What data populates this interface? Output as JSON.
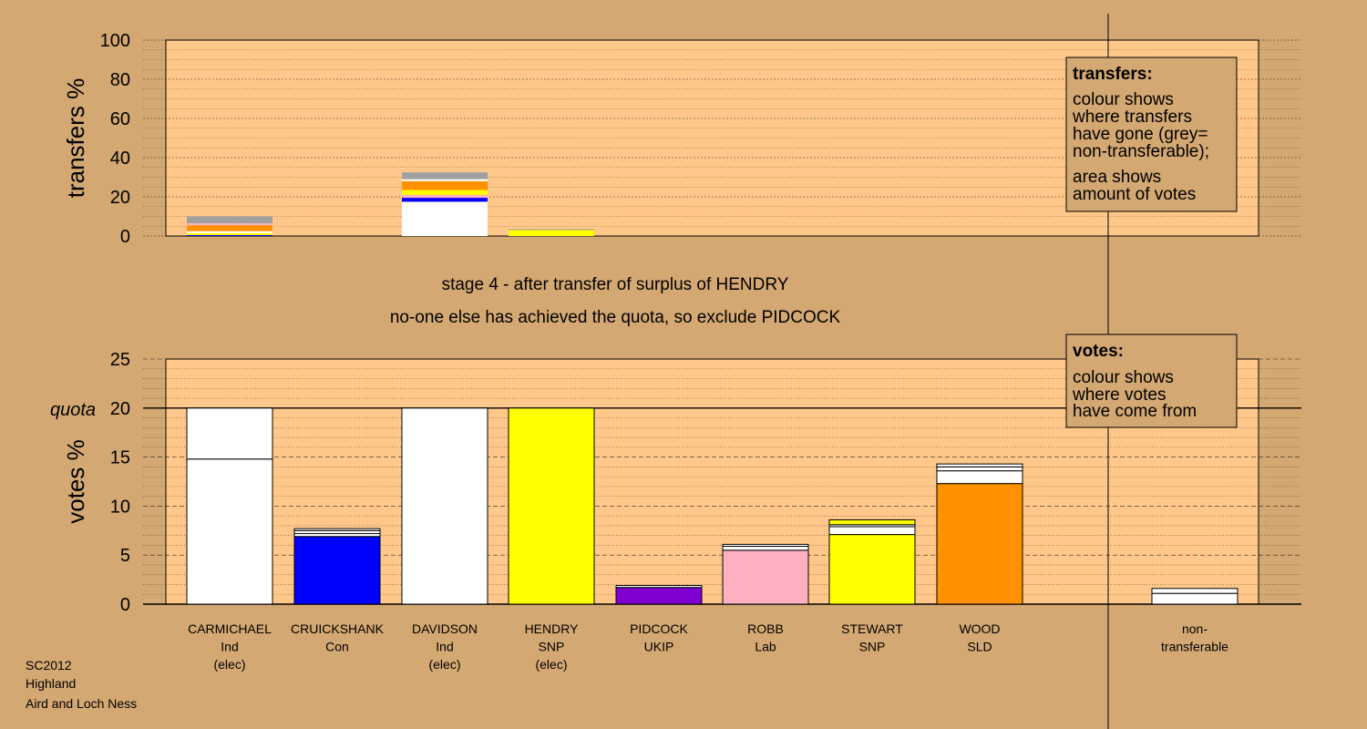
{
  "colors": {
    "background": "#d4a872",
    "plot_bg": "#ffc88a",
    "white": "#ffffff",
    "blue": "#0000ff",
    "yellow": "#ffff00",
    "orange": "#ff9000",
    "purple": "#8000d0",
    "pink": "#ffb0c0",
    "grey": "#a0a0a0"
  },
  "chart_data": [
    {
      "id": "transfers",
      "type": "bar",
      "ylabel": "transfers %",
      "ylim": [
        0,
        100
      ],
      "yticks": [
        0,
        20,
        40,
        60,
        80,
        100
      ],
      "grid": true,
      "stacked": true,
      "bars": [
        {
          "candidate": "CARMICHAEL",
          "segments": [
            {
              "value": 0.5,
              "color": "blue"
            },
            {
              "value": 1.0,
              "color": "yellow"
            },
            {
              "value": 1.0,
              "color": "white"
            },
            {
              "value": 3.0,
              "color": "orange"
            },
            {
              "value": 1.0,
              "color": "pink"
            },
            {
              "value": 3.5,
              "color": "grey"
            }
          ]
        },
        {
          "candidate": "DAVIDSON",
          "segments": [
            {
              "value": 17.5,
              "color": "white"
            },
            {
              "value": 2.0,
              "color": "blue"
            },
            {
              "value": 1.5,
              "color": "pink"
            },
            {
              "value": 2.5,
              "color": "yellow"
            },
            {
              "value": 4.5,
              "color": "orange"
            },
            {
              "value": 1.0,
              "color": "white"
            },
            {
              "value": 3.5,
              "color": "grey"
            }
          ]
        },
        {
          "candidate": "HENDRY",
          "segments": [
            {
              "value": 3.0,
              "color": "yellow"
            },
            {
              "value": 0.5,
              "color": "grey"
            }
          ]
        }
      ],
      "legend": {
        "title": "transfers:",
        "lines": [
          "colour shows",
          "where transfers",
          "have gone (grey=",
          "non-transferable);",
          "area shows",
          "amount of votes"
        ]
      }
    },
    {
      "id": "votes",
      "type": "bar",
      "ylabel": "votes %",
      "ylim": [
        0,
        25
      ],
      "yticks": [
        0,
        5,
        10,
        15,
        20,
        25
      ],
      "quota": 20,
      "quota_label": "quota",
      "grid": true,
      "stacked": true,
      "bars": [
        {
          "candidate": "CARMICHAEL",
          "party": "Ind",
          "status": "(elec)",
          "segments": [
            {
              "value": 14.8,
              "color": "white"
            },
            {
              "value": 5.2,
              "color": "white"
            }
          ]
        },
        {
          "candidate": "CRUICKSHANK",
          "party": "Con",
          "status": "",
          "segments": [
            {
              "value": 6.9,
              "color": "blue"
            },
            {
              "value": 0.3,
              "color": "white"
            },
            {
              "value": 0.3,
              "color": "white"
            },
            {
              "value": 0.2,
              "color": "white"
            }
          ]
        },
        {
          "candidate": "DAVIDSON",
          "party": "Ind",
          "status": "(elec)",
          "segments": [
            {
              "value": 20.0,
              "color": "white"
            }
          ]
        },
        {
          "candidate": "HENDRY",
          "party": "SNP",
          "status": "(elec)",
          "segments": [
            {
              "value": 20.0,
              "color": "yellow"
            }
          ]
        },
        {
          "candidate": "PIDCOCK",
          "party": "UKIP",
          "status": "",
          "segments": [
            {
              "value": 1.7,
              "color": "purple"
            },
            {
              "value": 0.2,
              "color": "white"
            }
          ]
        },
        {
          "candidate": "ROBB",
          "party": "Lab",
          "status": "",
          "segments": [
            {
              "value": 5.5,
              "color": "pink"
            },
            {
              "value": 0.4,
              "color": "white"
            },
            {
              "value": 0.2,
              "color": "white"
            }
          ]
        },
        {
          "candidate": "STEWART",
          "party": "SNP",
          "status": "",
          "segments": [
            {
              "value": 7.1,
              "color": "yellow"
            },
            {
              "value": 0.8,
              "color": "white"
            },
            {
              "value": 0.2,
              "color": "white"
            },
            {
              "value": 0.5,
              "color": "yellow"
            }
          ]
        },
        {
          "candidate": "WOOD",
          "party": "SLD",
          "status": "",
          "segments": [
            {
              "value": 12.3,
              "color": "orange"
            },
            {
              "value": 1.3,
              "color": "white"
            },
            {
              "value": 0.4,
              "color": "white"
            },
            {
              "value": 0.3,
              "color": "white"
            }
          ]
        },
        {
          "candidate": "non-transferable",
          "party": "",
          "status": "",
          "segments": [
            {
              "value": 1.1,
              "color": "white"
            },
            {
              "value": 0.5,
              "color": "white"
            }
          ]
        }
      ],
      "legend": {
        "title": "votes:",
        "lines": [
          "colour shows",
          "where votes",
          "have come from"
        ]
      }
    }
  ],
  "stage_title": "stage 4 - after transfer of surplus of HENDRY",
  "stage_subtitle": "no-one else has achieved the quota, so exclude PIDCOCK",
  "footer": {
    "election": "SC2012",
    "council": "Highland",
    "ward": "Aird and Loch Ness"
  }
}
